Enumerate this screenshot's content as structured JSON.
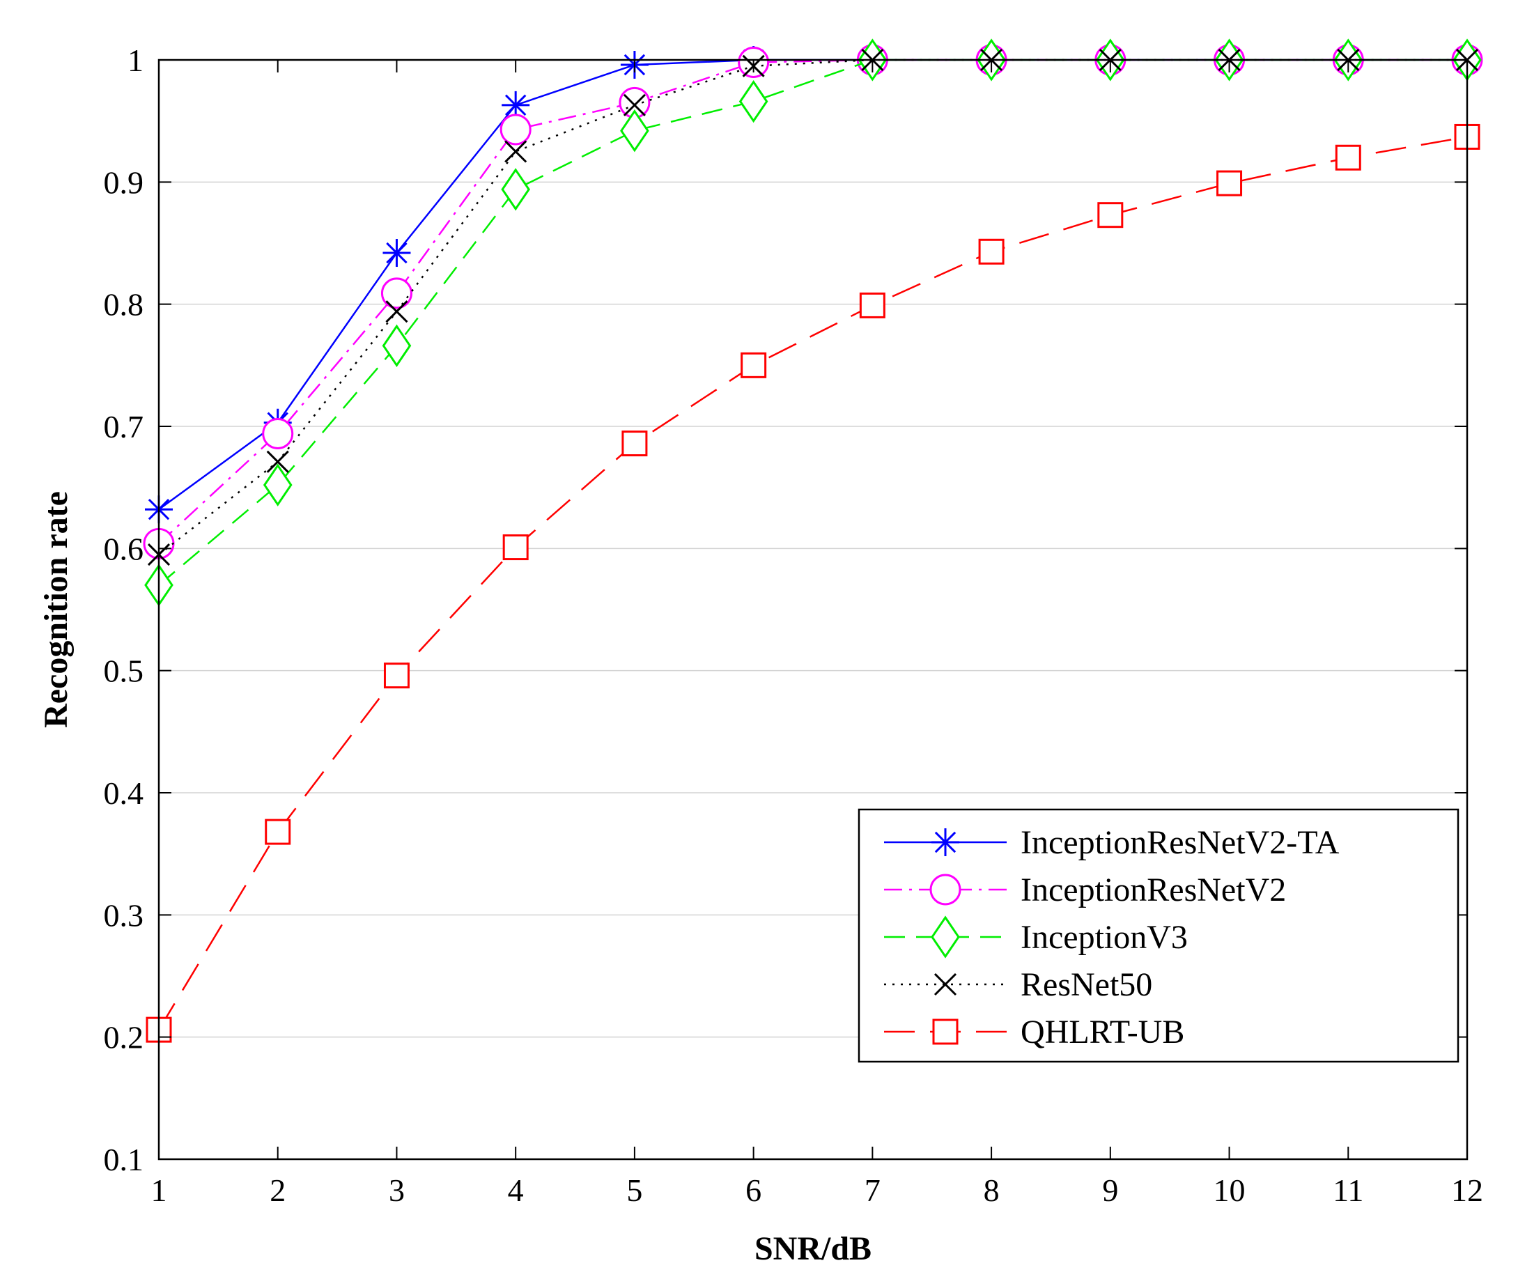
{
  "chart_data": {
    "type": "line",
    "title": "",
    "xlabel": "SNR/dB",
    "ylabel": "Recognition rate",
    "xlim": [
      1,
      12
    ],
    "ylim": [
      0.1,
      1
    ],
    "x": [
      1,
      2,
      3,
      4,
      5,
      6,
      7,
      8,
      9,
      10,
      11,
      12
    ],
    "xticks": [
      "1",
      "2",
      "3",
      "4",
      "5",
      "6",
      "7",
      "8",
      "9",
      "10",
      "11",
      "12"
    ],
    "yticks": [
      0.1,
      0.2,
      0.3,
      0.4,
      0.5,
      0.6,
      0.7,
      0.8,
      0.9,
      1
    ],
    "ytick_labels": [
      "0.1",
      "0.2",
      "0.3",
      "0.4",
      "0.5",
      "0.6",
      "0.7",
      "0.8",
      "0.9",
      "1"
    ],
    "grid": "horizontal",
    "legend_position": "bottom-right",
    "series": [
      {
        "name": "InceptionResNetV2-TA",
        "color": "#0000ff",
        "line_style": "solid",
        "marker": "asterisk",
        "values": [
          0.632,
          0.703,
          0.842,
          0.963,
          0.996,
          1.0,
          1.0,
          1.0,
          1.0,
          1.0,
          1.0,
          1.0
        ]
      },
      {
        "name": "InceptionResNetV2",
        "color": "#ff00ff",
        "line_style": "dashdot",
        "marker": "circle",
        "values": [
          0.604,
          0.694,
          0.809,
          0.943,
          0.965,
          0.998,
          1.0,
          1.0,
          1.0,
          1.0,
          1.0,
          1.0
        ]
      },
      {
        "name": "InceptionV3",
        "color": "#00ee00",
        "line_style": "dashed",
        "marker": "diamond",
        "values": [
          0.57,
          0.652,
          0.766,
          0.894,
          0.942,
          0.966,
          1.0,
          1.0,
          1.0,
          1.0,
          1.0,
          1.0
        ]
      },
      {
        "name": "ResNet50",
        "color": "#000000",
        "line_style": "dotted",
        "marker": "x",
        "values": [
          0.595,
          0.671,
          0.794,
          0.925,
          0.963,
          0.995,
          1.0,
          1.0,
          1.0,
          1.0,
          1.0,
          1.0
        ]
      },
      {
        "name": "QHLRT-UB",
        "color": "#ff0000",
        "line_style": "longdash",
        "marker": "square",
        "values": [
          0.206,
          0.368,
          0.496,
          0.601,
          0.686,
          0.75,
          0.799,
          0.843,
          0.873,
          0.899,
          0.92,
          0.937
        ]
      }
    ]
  }
}
